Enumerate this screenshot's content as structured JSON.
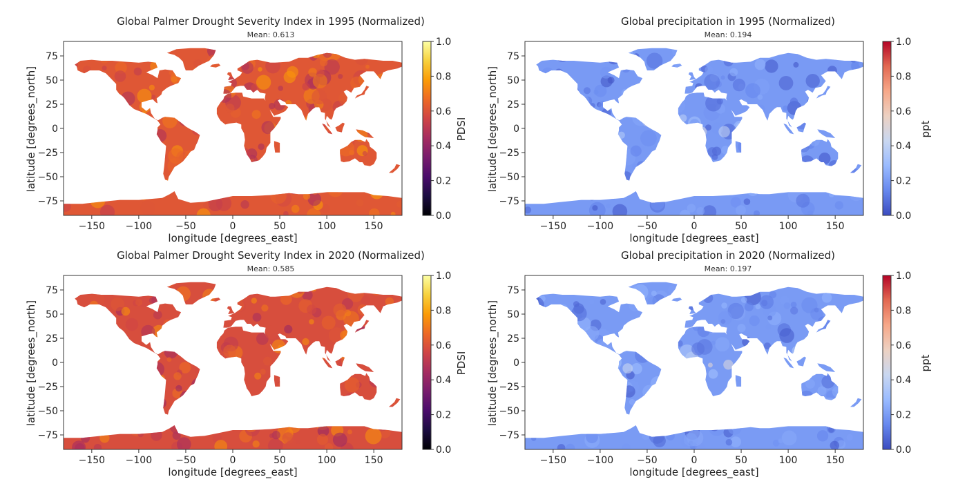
{
  "colors": {
    "inferno": [
      "#000004",
      "#1b0c41",
      "#4a0c6b",
      "#781c6d",
      "#a52c60",
      "#cf4446",
      "#ed6925",
      "#fb9b06",
      "#f7d13d",
      "#fcffa4"
    ],
    "coolwarm": [
      "#3b4cc0",
      "#6788ee",
      "#9abbff",
      "#c9d7f0",
      "#edd1c2",
      "#f7a889",
      "#e26952",
      "#b40426"
    ]
  },
  "chart_data": [
    {
      "type": "heatmap",
      "title": "Global Palmer Drought Severity Index in 1995 (Normalized)",
      "subtitle": "Mean: 0.613",
      "xlabel": "longitude [degrees_east]",
      "ylabel": "latitude [degrees_north]",
      "xlim": [
        -180,
        180
      ],
      "ylim": [
        -90,
        90
      ],
      "xticks": [
        -150,
        -100,
        -50,
        0,
        50,
        100,
        150
      ],
      "yticks": [
        75,
        50,
        25,
        0,
        -25,
        -50,
        -75
      ],
      "colorbar": {
        "label": "PDSI",
        "colormap": "inferno",
        "range": [
          0,
          1
        ],
        "ticks": [
          "1.0",
          "0.8",
          "0.6",
          "0.4",
          "0.2",
          "0.0"
        ]
      },
      "mean": 0.613
    },
    {
      "type": "heatmap",
      "title": "Global precipitation in 1995 (Normalized)",
      "subtitle": "Mean: 0.194",
      "xlabel": "longitude [degrees_east]",
      "ylabel": "latitude [degrees_north]",
      "xlim": [
        -180,
        180
      ],
      "ylim": [
        -90,
        90
      ],
      "xticks": [
        -150,
        -100,
        -50,
        0,
        50,
        100,
        150
      ],
      "yticks": [
        75,
        50,
        25,
        0,
        -25,
        -50,
        -75
      ],
      "colorbar": {
        "label": "ppt",
        "colormap": "coolwarm",
        "range": [
          0,
          1
        ],
        "ticks": [
          "1.0",
          "0.8",
          "0.6",
          "0.4",
          "0.2",
          "0.0"
        ]
      },
      "mean": 0.194
    },
    {
      "type": "heatmap",
      "title": "Global Palmer Drought Severity Index in 2020 (Normalized)",
      "subtitle": "Mean: 0.585",
      "xlabel": "longitude [degrees_east]",
      "ylabel": "latitude [degrees_north]",
      "xlim": [
        -180,
        180
      ],
      "ylim": [
        -90,
        90
      ],
      "xticks": [
        -150,
        -100,
        -50,
        0,
        50,
        100,
        150
      ],
      "yticks": [
        75,
        50,
        25,
        0,
        -25,
        -50,
        -75
      ],
      "colorbar": {
        "label": "PDSI",
        "colormap": "inferno",
        "range": [
          0,
          1
        ],
        "ticks": [
          "1.0",
          "0.8",
          "0.6",
          "0.4",
          "0.2",
          "0.0"
        ]
      },
      "mean": 0.585
    },
    {
      "type": "heatmap",
      "title": "Global precipitation in 2020 (Normalized)",
      "subtitle": "Mean: 0.197",
      "xlabel": "longitude [degrees_east]",
      "ylabel": "latitude [degrees_north]",
      "xlim": [
        -180,
        180
      ],
      "ylim": [
        -90,
        90
      ],
      "xticks": [
        -150,
        -100,
        -50,
        0,
        50,
        100,
        150
      ],
      "yticks": [
        75,
        50,
        25,
        0,
        -25,
        -50,
        -75
      ],
      "colorbar": {
        "label": "ppt",
        "colormap": "coolwarm",
        "range": [
          0,
          1
        ],
        "ticks": [
          "1.0",
          "0.8",
          "0.6",
          "0.4",
          "0.2",
          "0.0"
        ]
      },
      "mean": 0.197
    }
  ]
}
